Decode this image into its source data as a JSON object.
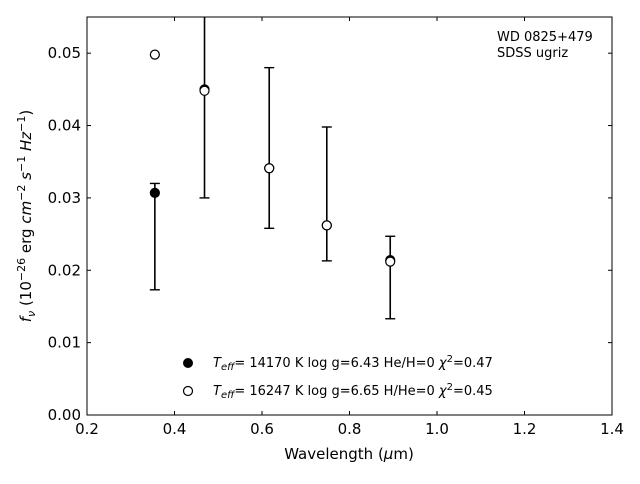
{
  "chart_data": {
    "type": "scatter",
    "title": "",
    "xlabel": "Wavelength (μm)",
    "ylabel": "fν (10⁻²⁶ erg cm⁻² s⁻¹ Hz⁻¹)",
    "xlim": [
      0.2,
      1.4
    ],
    "ylim": [
      0.0,
      0.055
    ],
    "grid": false,
    "legend_position": "lower-center",
    "x_ticks": [
      "0.2",
      "0.4",
      "0.6",
      "0.8",
      "1.0",
      "1.2",
      "1.4"
    ],
    "y_ticks": [
      "0.00",
      "0.01",
      "0.02",
      "0.03",
      "0.04",
      "0.05"
    ],
    "annotation": [
      "WD 0825+479",
      "SDSS ugriz"
    ],
    "observed": {
      "x": [
        0.3551,
        0.4686,
        0.6165,
        0.7481,
        0.8931
      ],
      "y": [
        0.0245,
        0.0452,
        0.0366,
        0.0305,
        0.019
      ],
      "yerr_low": [
        0.0072,
        0.0152,
        0.0108,
        0.0092,
        0.0057
      ],
      "yerr_high": [
        0.0075,
        0.0105,
        0.0114,
        0.0093,
        0.0057
      ]
    },
    "series": [
      {
        "name": "Teff= 14170 K  log g=6.43  He/H=0  χ²=0.47",
        "marker": "filled-circle",
        "x": [
          0.3551,
          0.4686,
          0.6165,
          0.7481,
          0.8931
        ],
        "y": [
          0.0307,
          0.045,
          0.0341,
          0.0262,
          0.0214
        ]
      },
      {
        "name": "Teff= 16247 K  log g=6.65  H/He=0  χ²=0.45",
        "marker": "open-circle",
        "x": [
          0.3551,
          0.4686,
          0.6165,
          0.7481,
          0.8931
        ],
        "y": [
          0.0498,
          0.0448,
          0.0341,
          0.0262,
          0.0212
        ]
      }
    ]
  }
}
